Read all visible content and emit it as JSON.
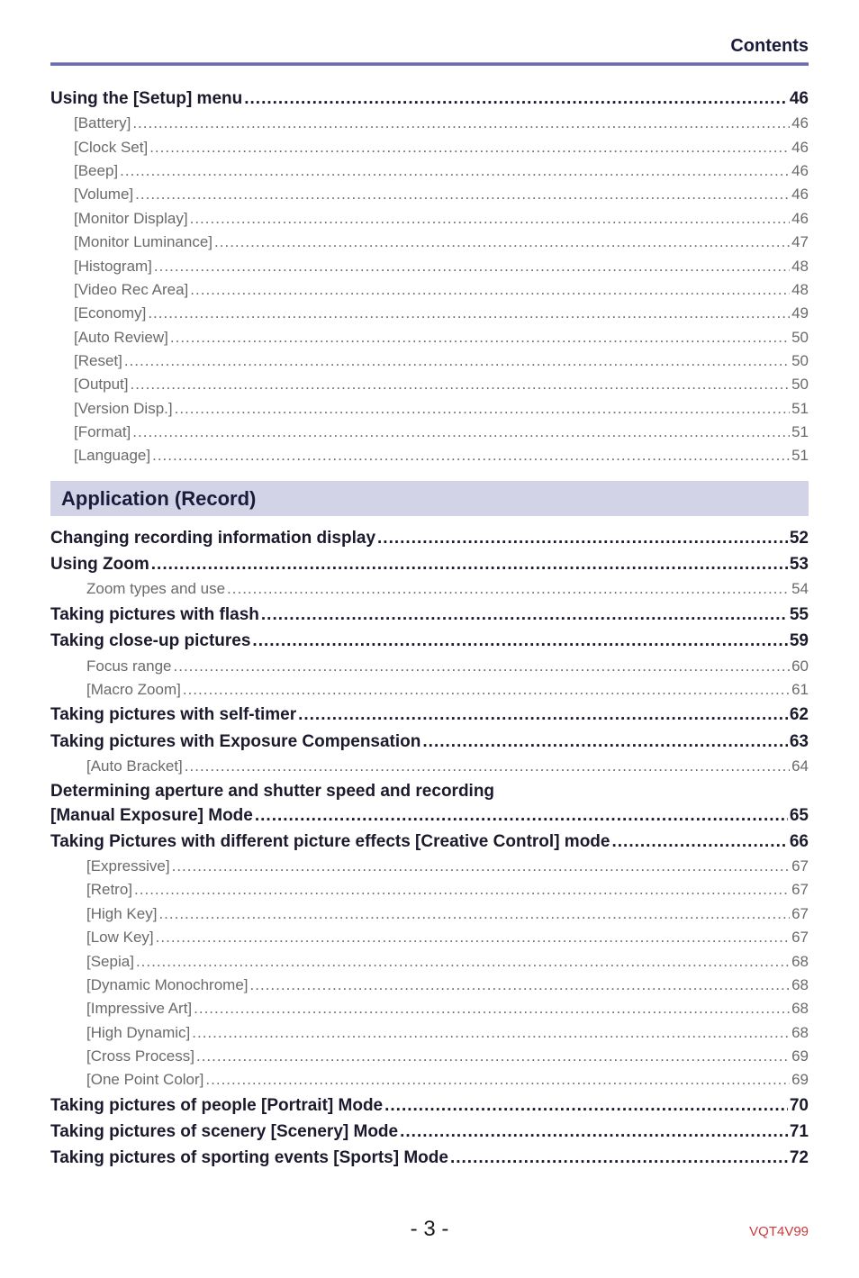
{
  "header_label": "Contents",
  "section1": {
    "heading": {
      "title": "Using the [Setup] menu",
      "page": "46"
    },
    "items": [
      {
        "title": "[Battery]",
        "page": "46"
      },
      {
        "title": "[Clock Set]",
        "page": "46"
      },
      {
        "title": "[Beep]",
        "page": "46"
      },
      {
        "title": "[Volume]",
        "page": "46"
      },
      {
        "title": "[Monitor Display]",
        "page": "46"
      },
      {
        "title": "[Monitor Luminance]",
        "page": "47"
      },
      {
        "title": "[Histogram]",
        "page": "48"
      },
      {
        "title": "[Video Rec Area]",
        "page": "48"
      },
      {
        "title": "[Economy]",
        "page": "49"
      },
      {
        "title": "[Auto Review]",
        "page": "50"
      },
      {
        "title": "[Reset]",
        "page": "50"
      },
      {
        "title": "[Output]",
        "page": "50"
      },
      {
        "title": "[Version Disp.]",
        "page": "51"
      },
      {
        "title": "[Format]",
        "page": "51"
      },
      {
        "title": "[Language]",
        "page": "51"
      }
    ]
  },
  "section2_title": "Application (Record)",
  "section2_rows": [
    {
      "level": "lvl0",
      "title": "Changing recording information display",
      "page": "52"
    },
    {
      "level": "lvl0",
      "title": "Using Zoom",
      "page": "53"
    },
    {
      "level": "lvl1b",
      "title": "Zoom types and use",
      "page": "54"
    },
    {
      "level": "lvl0",
      "title": "Taking pictures with flash",
      "page": "55"
    },
    {
      "level": "lvl0",
      "title": "Taking close-up pictures",
      "page": "59"
    },
    {
      "level": "lvl1b",
      "title": "Focus range",
      "page": "60"
    },
    {
      "level": "lvl1b",
      "title": "[Macro Zoom]",
      "page": "61"
    },
    {
      "level": "lvl0",
      "title": "Taking pictures with self-timer",
      "page": "62"
    },
    {
      "level": "lvl0",
      "title": "Taking pictures with Exposure Compensation",
      "page": "63"
    },
    {
      "level": "lvl1b",
      "title": "[Auto Bracket]",
      "page": "64"
    }
  ],
  "multiline_a": {
    "line1": "Determining aperture and shutter speed and recording",
    "line2": "[Manual Exposure] Mode",
    "page": "65"
  },
  "section2_rows_b": [
    {
      "level": "lvl0",
      "title": "Taking Pictures with different picture effects  [Creative Control] mode",
      "page": "66"
    },
    {
      "level": "lvl1b",
      "title": "[Expressive]",
      "page": "67"
    },
    {
      "level": "lvl1b",
      "title": "[Retro]",
      "page": "67"
    },
    {
      "level": "lvl1b",
      "title": "[High Key]",
      "page": "67"
    },
    {
      "level": "lvl1b",
      "title": "[Low Key]",
      "page": "67"
    },
    {
      "level": "lvl1b",
      "title": "[Sepia]",
      "page": "68"
    },
    {
      "level": "lvl1b",
      "title": "[Dynamic Monochrome]",
      "page": "68"
    },
    {
      "level": "lvl1b",
      "title": "[Impressive Art]",
      "page": "68"
    },
    {
      "level": "lvl1b",
      "title": "[High Dynamic]",
      "page": "68"
    },
    {
      "level": "lvl1b",
      "title": "[Cross Process]",
      "page": "69"
    },
    {
      "level": "lvl1b",
      "title": "[One Point Color]",
      "page": "69"
    },
    {
      "level": "lvl0",
      "title": "Taking pictures of people  [Portrait] Mode",
      "page": "70"
    },
    {
      "level": "lvl0",
      "title": "Taking pictures of scenery  [Scenery] Mode",
      "page": "71"
    },
    {
      "level": "lvl0",
      "title": "Taking pictures of sporting events  [Sports] Mode",
      "page": "72"
    }
  ],
  "footer": {
    "page": "- 3 -",
    "doc": "VQT4V99"
  }
}
